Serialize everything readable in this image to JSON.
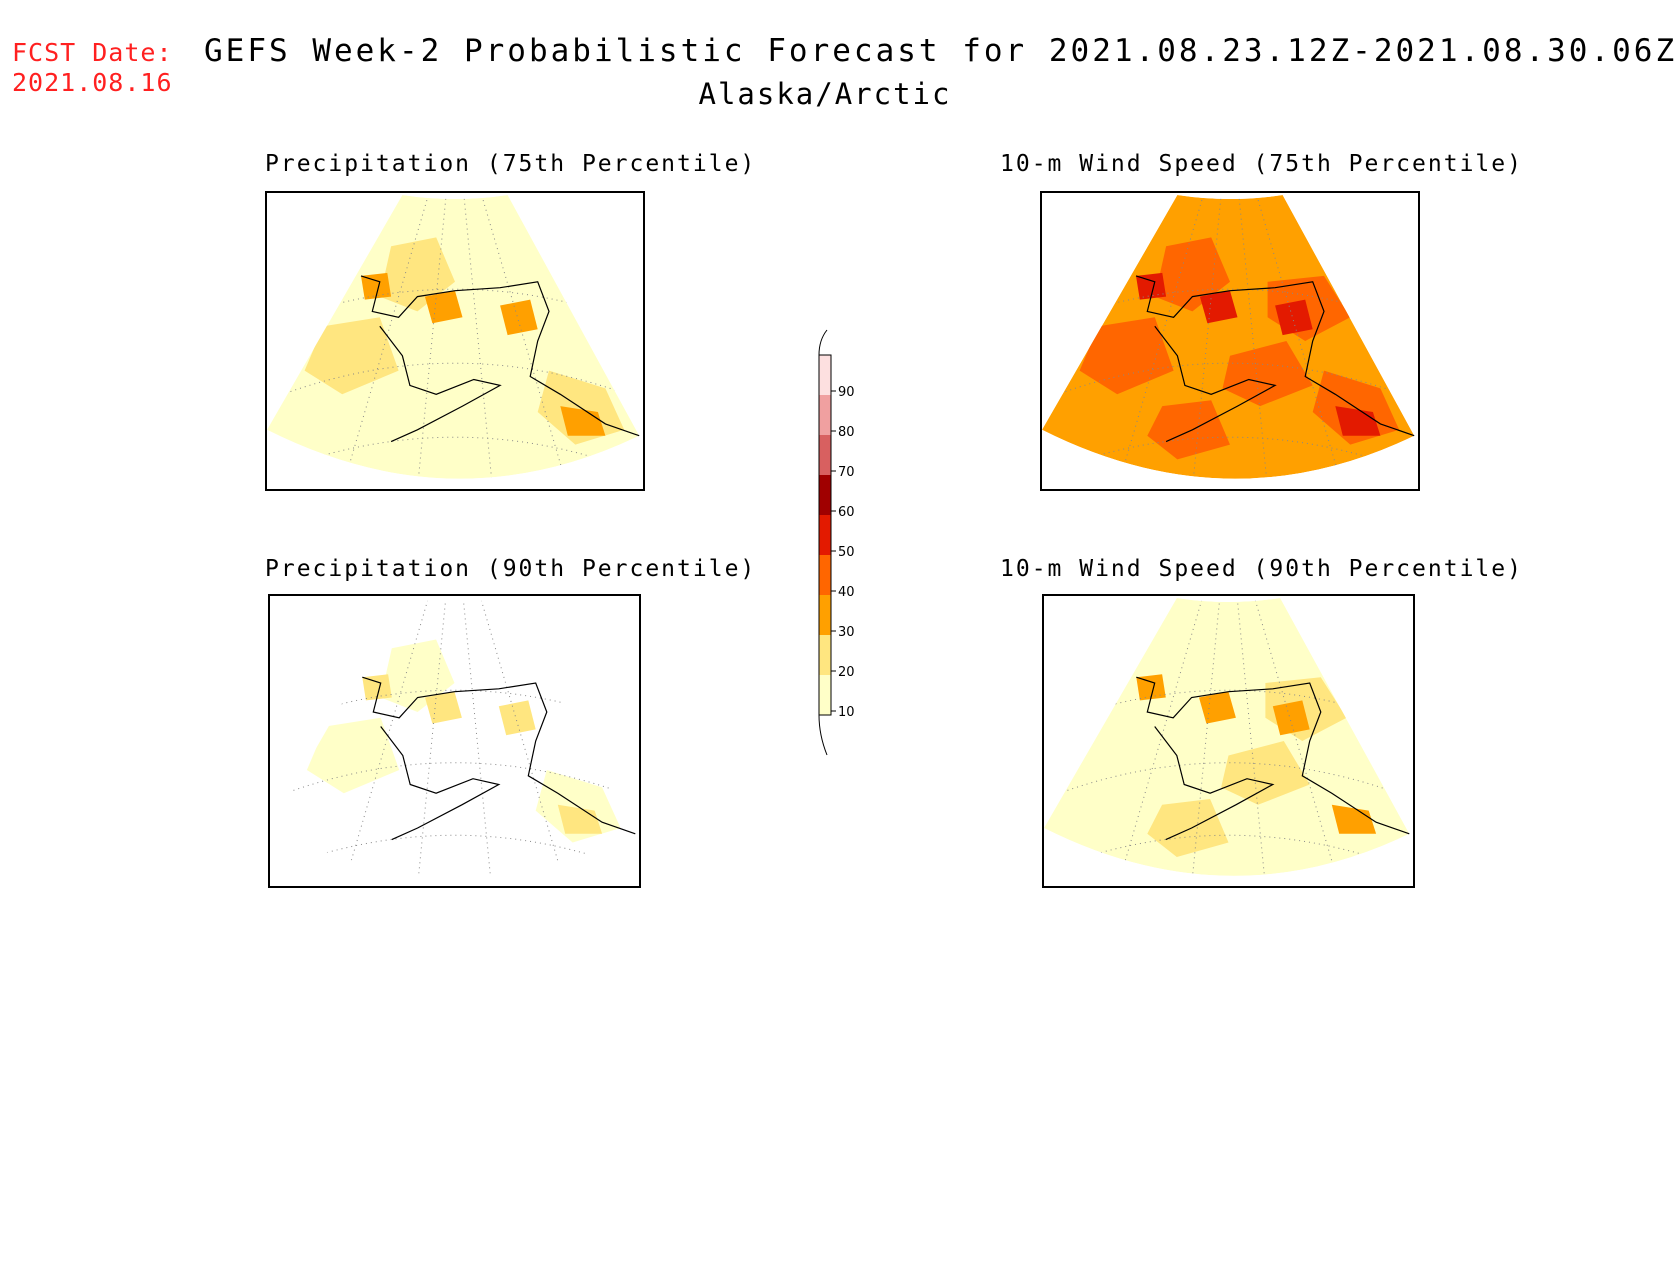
{
  "header": {
    "fcst_date_label": "FCST Date:",
    "fcst_date_value": "2021.08.16",
    "title": "GEFS Week-2 Probabilistic Forecast for 2021.08.23.12Z-2021.08.30.06Z",
    "region": "Alaska/Arctic"
  },
  "panels": [
    {
      "id": "precip-75",
      "title": "Precipitation (75th Percentile)",
      "dominant_category": "10-20",
      "secondary_category": "20-30",
      "minor_category": "30-40"
    },
    {
      "id": "wind-75",
      "title": "10-m Wind Speed (75th Percentile)",
      "dominant_category": "30-40",
      "secondary_category": "40-50",
      "minor_category": "50-60"
    },
    {
      "id": "precip-90",
      "title": "Precipitation (90th Percentile)",
      "dominant_category": "<10",
      "secondary_category": "10-20",
      "minor_category": "20-30"
    },
    {
      "id": "wind-90",
      "title": "10-m Wind Speed (90th Percentile)",
      "dominant_category": "10-20",
      "secondary_category": "20-30",
      "minor_category": "30-40"
    }
  ],
  "colorbar": {
    "labels": [
      "10",
      "20",
      "30",
      "40",
      "50",
      "60",
      "70",
      "80",
      "90"
    ],
    "colors": [
      "#ffffc8",
      "#ffe680",
      "#ffa000",
      "#ff6600",
      "#e31a00",
      "#a00000",
      "#d86060",
      "#f0a0a0",
      "#fde0e0"
    ],
    "units": "%"
  }
}
